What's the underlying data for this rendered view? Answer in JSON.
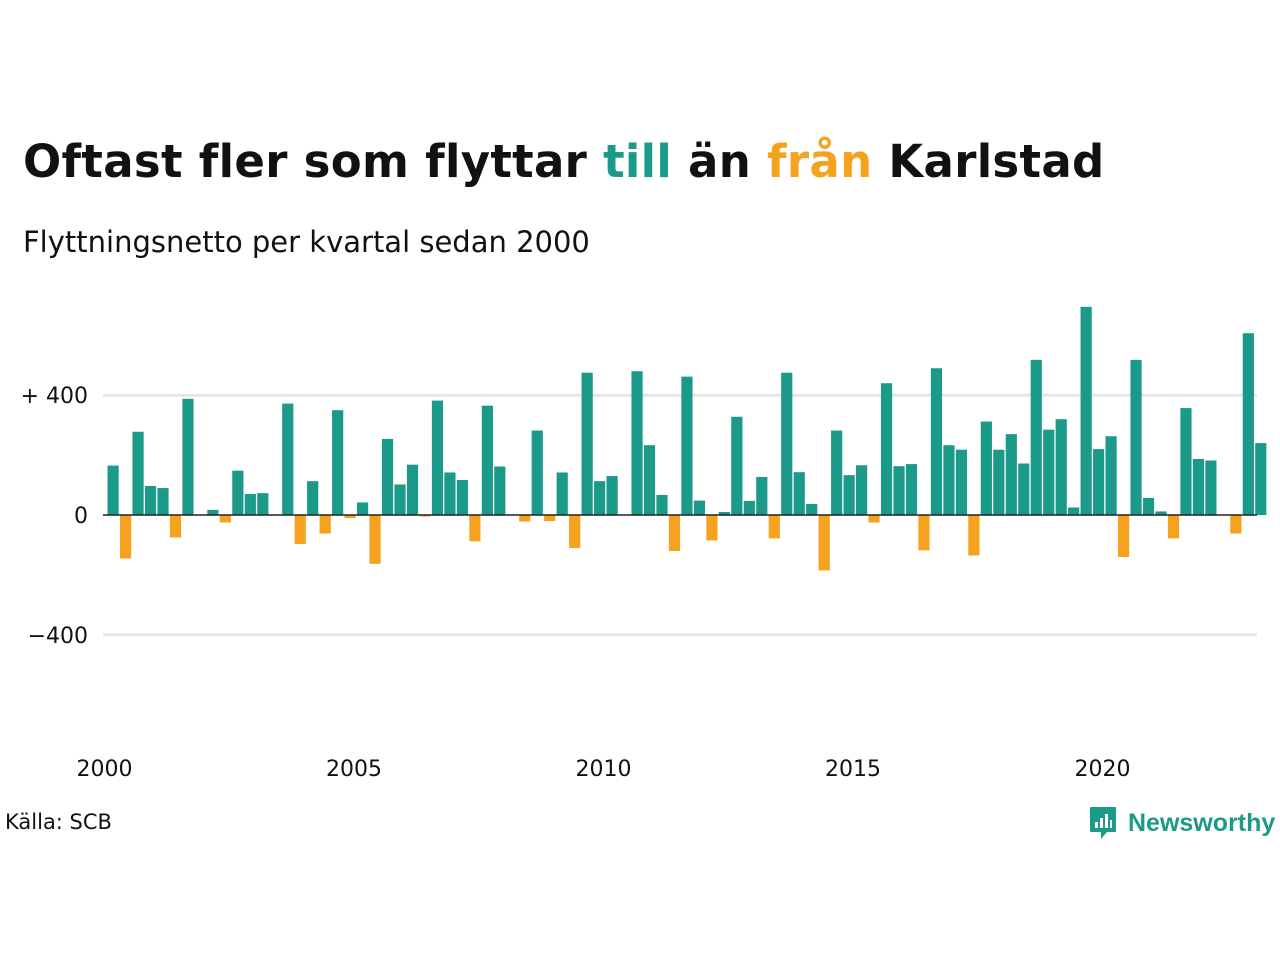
{
  "title": {
    "part1": "Oftast fler som flyttar ",
    "till": "till",
    "part2": " än ",
    "fran": "från",
    "part3": " Karlstad"
  },
  "subtitle": "Flyttningsnetto per kvartal sedan 2000",
  "source": "Källa: SCB",
  "brand": "Newsworthy",
  "colors": {
    "positive": "#1b9a8a",
    "negative": "#f5a21f",
    "grid": "#e6e6e6",
    "axis": "#222222"
  },
  "chart_data": {
    "type": "bar",
    "title": "",
    "xlabel": "",
    "ylabel": "",
    "ylim": [
      -580,
      720
    ],
    "yticks": [
      {
        "value": 400,
        "label": "+ 400"
      },
      {
        "value": 0,
        "label": "0"
      },
      {
        "value": -400,
        "label": "−400"
      }
    ],
    "xtick_labels": [
      "2000",
      "2005",
      "2010",
      "2015",
      "2020"
    ],
    "grid": true,
    "start_quarter": "2000 Q1",
    "values": [
      165,
      -145,
      278,
      97,
      90,
      -75,
      388,
      0,
      17,
      -25,
      148,
      70,
      73,
      0,
      372,
      -97,
      113,
      -62,
      350,
      -10,
      42,
      -163,
      254,
      102,
      168,
      -5,
      382,
      142,
      117,
      -88,
      365,
      162,
      0,
      -22,
      282,
      -20,
      142,
      -110,
      475,
      113,
      130,
      0,
      480,
      233,
      67,
      -120,
      462,
      48,
      -85,
      10,
      328,
      47,
      127,
      -78,
      475,
      143,
      37,
      -185,
      282,
      133,
      166,
      -25,
      440,
      163,
      170,
      -118,
      490,
      233,
      218,
      -135,
      312,
      218,
      270,
      172,
      518,
      285,
      320,
      25,
      695,
      220,
      263,
      -140,
      518,
      57,
      12,
      -78,
      357,
      187,
      182,
      0,
      -62,
      607,
      240
    ]
  }
}
